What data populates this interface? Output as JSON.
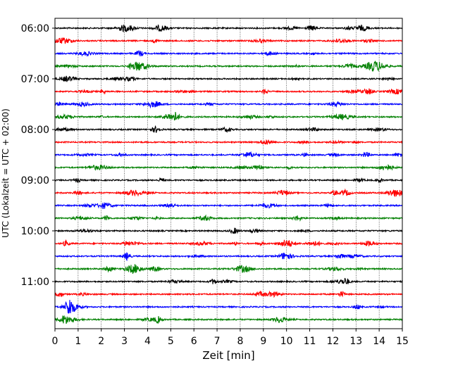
{
  "chart_data": {
    "type": "line",
    "title": "",
    "xlabel": "Zeit  [min]",
    "ylabel": "UTC (Lokalzeit = UTC + 02:00)",
    "xlim": [
      0,
      15
    ],
    "x_ticks": [
      "0",
      "1",
      "2",
      "3",
      "4",
      "5",
      "6",
      "7",
      "8",
      "9",
      "10",
      "11",
      "12",
      "13",
      "14",
      "15"
    ],
    "y_ticks": [
      "06:00",
      "07:00",
      "08:00",
      "09:00",
      "10:00",
      "11:00"
    ],
    "grid_x": "dotted vertical lines at each minute",
    "trace_interval_minutes": 15,
    "colors_cycle": [
      "#000000",
      "#ff0000",
      "#0000ff",
      "#008000"
    ],
    "traces": [
      {
        "start": "06:00",
        "color": "#000000"
      },
      {
        "start": "06:15",
        "color": "#ff0000"
      },
      {
        "start": "06:30",
        "color": "#0000ff"
      },
      {
        "start": "06:45",
        "color": "#008000"
      },
      {
        "start": "07:00",
        "color": "#000000"
      },
      {
        "start": "07:15",
        "color": "#ff0000"
      },
      {
        "start": "07:30",
        "color": "#0000ff"
      },
      {
        "start": "07:45",
        "color": "#008000"
      },
      {
        "start": "08:00",
        "color": "#000000"
      },
      {
        "start": "08:15",
        "color": "#ff0000"
      },
      {
        "start": "08:30",
        "color": "#0000ff"
      },
      {
        "start": "08:45",
        "color": "#008000"
      },
      {
        "start": "09:00",
        "color": "#000000"
      },
      {
        "start": "09:15",
        "color": "#ff0000"
      },
      {
        "start": "09:30",
        "color": "#0000ff"
      },
      {
        "start": "09:45",
        "color": "#008000"
      },
      {
        "start": "10:00",
        "color": "#000000"
      },
      {
        "start": "10:15",
        "color": "#ff0000"
      },
      {
        "start": "10:30",
        "color": "#0000ff"
      },
      {
        "start": "10:45",
        "color": "#008000"
      },
      {
        "start": "11:00",
        "color": "#000000"
      },
      {
        "start": "11:15",
        "color": "#ff0000"
      },
      {
        "start": "11:30",
        "color": "#0000ff"
      },
      {
        "start": "11:45",
        "color": "#008000"
      }
    ]
  }
}
